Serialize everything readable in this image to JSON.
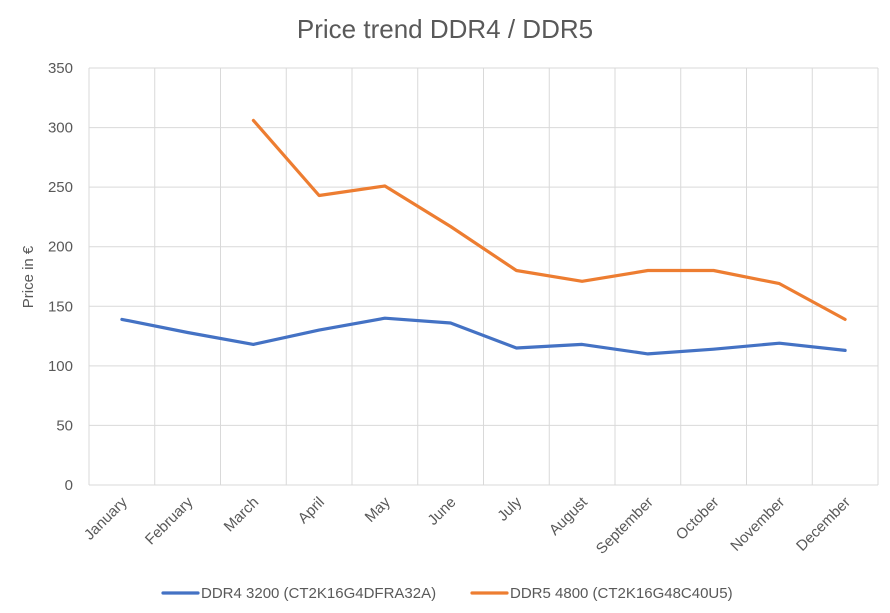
{
  "chart_data": {
    "type": "line",
    "title": "Price trend DDR4 / DDR5",
    "xlabel": "",
    "ylabel": "Price in €",
    "categories": [
      "January",
      "February",
      "March",
      "April",
      "May",
      "June",
      "July",
      "August",
      "September",
      "October",
      "November",
      "December"
    ],
    "ylim": [
      0,
      350
    ],
    "yticks": [
      0,
      50,
      100,
      150,
      200,
      250,
      300,
      350
    ],
    "grid": true,
    "legend_position": "bottom",
    "series": [
      {
        "name": "DDR4 3200 (CT2K16G4DFRA32A)",
        "color": "#4472c4",
        "values": [
          139,
          128,
          118,
          130,
          140,
          136,
          115,
          118,
          110,
          114,
          119,
          113
        ]
      },
      {
        "name": "DDR5 4800 (CT2K16G48C40U5)",
        "color": "#ed7d31",
        "values": [
          null,
          null,
          306,
          243,
          251,
          217,
          180,
          171,
          180,
          180,
          169,
          139
        ]
      }
    ]
  }
}
